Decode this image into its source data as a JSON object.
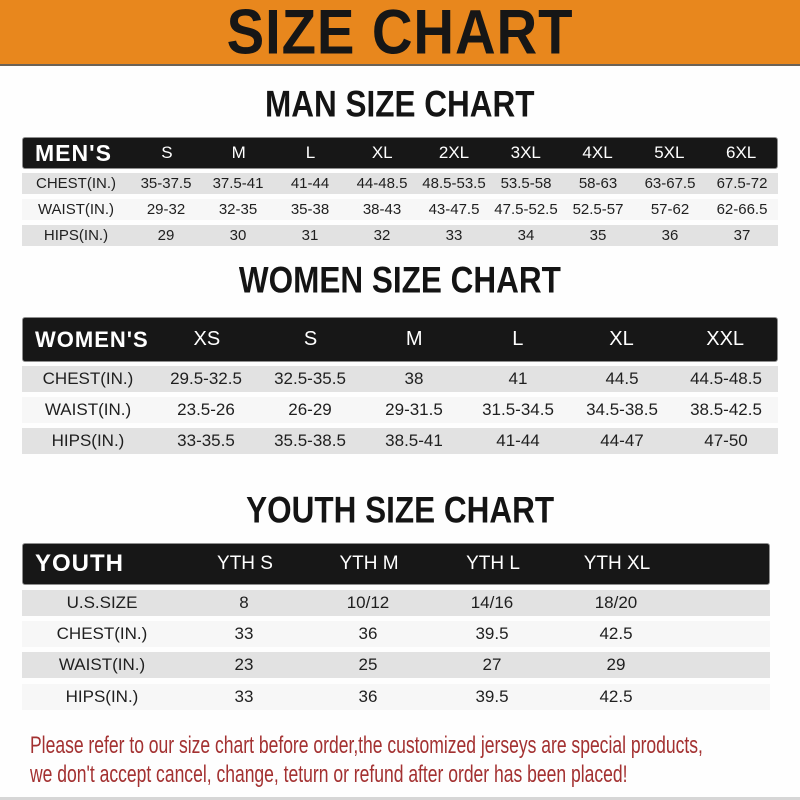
{
  "banner": {
    "title": "SIZE CHART"
  },
  "colors": {
    "banner_bg": "#E8871D",
    "banner_text": "#161616",
    "header_bar_bg": "#171717",
    "header_bar_text": "#FFFFFF",
    "row_gray_bg": "#E2E2E2",
    "row_light_bg": "#F7F7F7",
    "footer_text": "#A33131"
  },
  "chart_data": [
    {
      "type": "table",
      "title": "MAN SIZE CHART",
      "header_label": "MEN'S",
      "columns": [
        "S",
        "M",
        "L",
        "XL",
        "2XL",
        "3XL",
        "4XL",
        "5XL",
        "6XL"
      ],
      "rows": [
        {
          "label": "CHEST(IN.)",
          "values": [
            "35-37.5",
            "37.5-41",
            "41-44",
            "44-48.5",
            "48.5-53.5",
            "53.5-58",
            "58-63",
            "63-67.5",
            "67.5-72"
          ]
        },
        {
          "label": "WAIST(IN.)",
          "values": [
            "29-32",
            "32-35",
            "35-38",
            "38-43",
            "43-47.5",
            "47.5-52.5",
            "52.5-57",
            "57-62",
            "62-66.5"
          ]
        },
        {
          "label": "HIPS(IN.)",
          "values": [
            "29",
            "30",
            "31",
            "32",
            "33",
            "34",
            "35",
            "36",
            "37"
          ]
        }
      ]
    },
    {
      "type": "table",
      "title": "WOMEN SIZE CHART",
      "header_label": "WOMEN'S",
      "columns": [
        "XS",
        "S",
        "M",
        "L",
        "XL",
        "XXL"
      ],
      "rows": [
        {
          "label": "CHEST(IN.)",
          "values": [
            "29.5-32.5",
            "32.5-35.5",
            "38",
            "41",
            "44.5",
            "44.5-48.5"
          ]
        },
        {
          "label": "WAIST(IN.)",
          "values": [
            "23.5-26",
            "26-29",
            "29-31.5",
            "31.5-34.5",
            "34.5-38.5",
            "38.5-42.5"
          ]
        },
        {
          "label": "HIPS(IN.)",
          "values": [
            "33-35.5",
            "35.5-38.5",
            "38.5-41",
            "41-44",
            "44-47",
            "47-50"
          ]
        }
      ]
    },
    {
      "type": "table",
      "title": "YOUTH SIZE CHART",
      "header_label": "YOUTH",
      "columns": [
        "YTH S",
        "YTH M",
        "YTH L",
        "YTH XL"
      ],
      "rows": [
        {
          "label": "U.S.SIZE",
          "values": [
            "8",
            "10/12",
            "14/16",
            "18/20"
          ]
        },
        {
          "label": "CHEST(IN.)",
          "values": [
            "33",
            "36",
            "39.5",
            "42.5"
          ]
        },
        {
          "label": "WAIST(IN.)",
          "values": [
            "23",
            "25",
            "27",
            "29"
          ]
        },
        {
          "label": "HIPS(IN.)",
          "values": [
            "33",
            "36",
            "39.5",
            "42.5"
          ]
        }
      ]
    }
  ],
  "footer": {
    "line1": "Please refer to our size chart before order,the customized jerseys are special products,",
    "line2": "we don't accept cancel, change, teturn or refund after order has been placed!"
  }
}
